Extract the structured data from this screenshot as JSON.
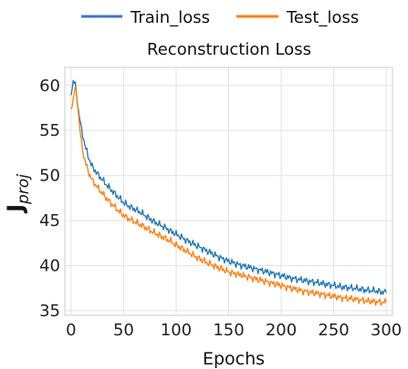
{
  "chart_data": {
    "type": "line",
    "title": "Reconstruction Loss",
    "xlabel": "Epochs",
    "ylabel": "J",
    "ylabel_subscript": "proj",
    "xlim": [
      -6,
      306
    ],
    "ylim": [
      34.5,
      62
    ],
    "grid": true,
    "legend_position": "top-center",
    "xticks": [
      0,
      50,
      100,
      150,
      200,
      250,
      300
    ],
    "yticks": [
      35,
      40,
      45,
      50,
      55,
      60
    ],
    "xtick_labels": [
      "0",
      "50",
      "100",
      "150",
      "200",
      "250",
      "300"
    ],
    "ytick_labels": [
      "35",
      "40",
      "45",
      "50",
      "55",
      "60"
    ],
    "series": [
      {
        "name": "Train_loss",
        "color": "#1f77b4",
        "legend_color": "#4472c4",
        "x": [
          0,
          2,
          4,
          6,
          8,
          10,
          12,
          14,
          16,
          18,
          20,
          25,
          30,
          35,
          40,
          45,
          50,
          55,
          60,
          65,
          70,
          75,
          80,
          85,
          90,
          95,
          100,
          110,
          120,
          130,
          140,
          150,
          160,
          170,
          180,
          190,
          200,
          210,
          220,
          230,
          240,
          250,
          260,
          270,
          280,
          290,
          300
        ],
        "values": [
          59.0,
          60.5,
          60.2,
          58.0,
          56.5,
          55.0,
          54.0,
          53.0,
          52.2,
          51.6,
          51.0,
          50.2,
          49.5,
          48.8,
          48.2,
          47.6,
          47.0,
          46.6,
          46.3,
          46.0,
          45.6,
          45.2,
          44.8,
          44.5,
          44.2,
          43.8,
          43.5,
          42.8,
          42.2,
          41.6,
          41.0,
          40.5,
          40.1,
          39.8,
          39.5,
          39.2,
          38.9,
          38.6,
          38.4,
          38.2,
          38.0,
          37.8,
          37.6,
          37.5,
          37.3,
          37.2,
          37.0
        ]
      },
      {
        "name": "Test_loss",
        "color": "#ff7f0e",
        "legend_color": "#ff7f0e",
        "x": [
          0,
          2,
          4,
          6,
          8,
          10,
          12,
          14,
          16,
          18,
          20,
          25,
          30,
          35,
          40,
          45,
          50,
          55,
          60,
          65,
          70,
          75,
          80,
          85,
          90,
          95,
          100,
          110,
          120,
          130,
          140,
          150,
          160,
          170,
          180,
          190,
          200,
          210,
          220,
          230,
          240,
          250,
          260,
          270,
          280,
          290,
          300
        ],
        "values": [
          57.3,
          58.5,
          59.8,
          58.3,
          55.5,
          53.5,
          52.2,
          51.3,
          50.6,
          50.0,
          49.5,
          48.7,
          48.0,
          47.3,
          46.7,
          46.1,
          45.6,
          45.2,
          44.9,
          44.6,
          44.3,
          43.9,
          43.6,
          43.3,
          43.0,
          42.7,
          42.3,
          41.6,
          40.9,
          40.3,
          39.8,
          39.3,
          39.0,
          38.7,
          38.4,
          38.1,
          37.8,
          37.5,
          37.2,
          37.0,
          36.8,
          36.6,
          36.4,
          36.3,
          36.1,
          36.0,
          35.9
        ]
      }
    ]
  }
}
